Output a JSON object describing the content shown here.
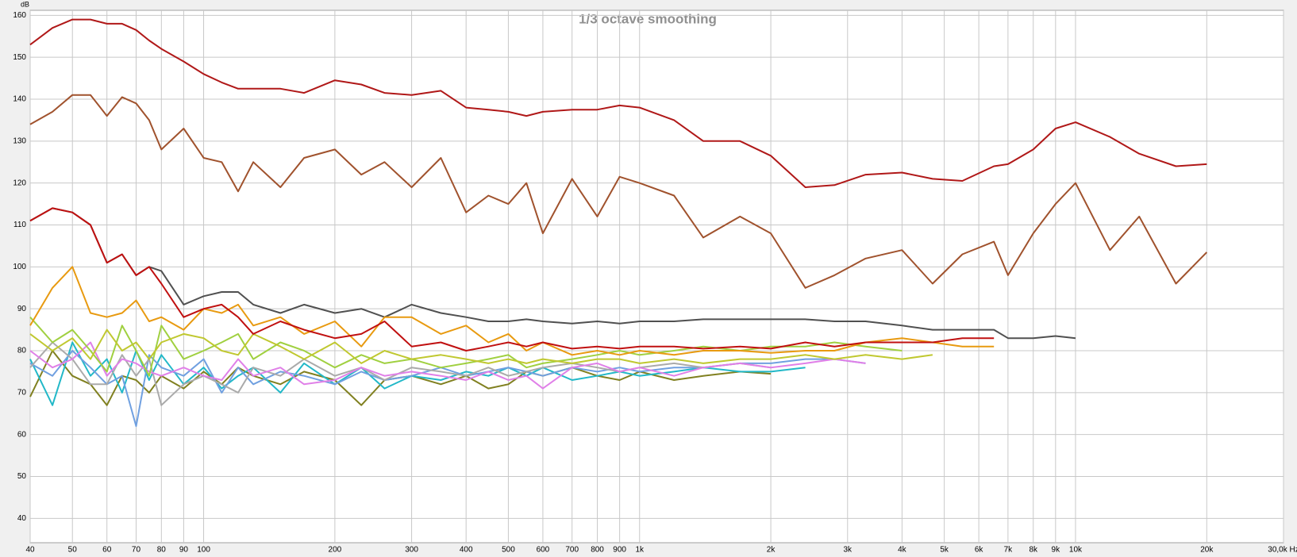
{
  "chart_data": {
    "type": "line",
    "title": "1/3 octave smoothing",
    "y_label": "dB",
    "x_scale": "log",
    "grid": true,
    "x": [
      40,
      45,
      50,
      55,
      60,
      65,
      70,
      75,
      80,
      90,
      100,
      110,
      120,
      130,
      150,
      170,
      200,
      230,
      260,
      300,
      350,
      400,
      450,
      500,
      550,
      600,
      700,
      800,
      900,
      1000,
      1200,
      1400,
      1700,
      2000,
      2400,
      2800,
      3300,
      4000,
      4700,
      5500,
      6500,
      7000,
      8000,
      9000,
      10000,
      12000,
      14000,
      17000,
      20000
    ],
    "xlim": [
      40,
      30000
    ],
    "ylim": [
      34.2,
      161.2
    ],
    "xticks": [
      40,
      50,
      60,
      70,
      80,
      90,
      100,
      200,
      300,
      400,
      500,
      600,
      700,
      800,
      900,
      {
        "value": 1000,
        "label": "1k"
      },
      {
        "value": 2000,
        "label": "2k"
      },
      {
        "value": 3000,
        "label": "3k"
      },
      {
        "value": 4000,
        "label": "4k"
      },
      {
        "value": 5000,
        "label": "5k"
      },
      {
        "value": 6000,
        "label": "6k"
      },
      {
        "value": 7000,
        "label": "7k"
      },
      {
        "value": 8000,
        "label": "8k"
      },
      {
        "value": 9000,
        "label": "9k"
      },
      {
        "value": 10000,
        "label": "10k"
      },
      {
        "value": 20000,
        "label": "20k"
      },
      {
        "value": 30000,
        "label": "30,0k Hz"
      }
    ],
    "yticks": [
      40,
      50,
      60,
      70,
      80,
      90,
      100,
      110,
      120,
      130,
      140,
      150,
      160
    ],
    "series": [
      {
        "color": "#808020",
        "values": [
          69,
          80,
          74,
          72,
          67,
          74,
          73,
          70,
          74,
          71,
          75,
          72,
          76,
          74,
          72,
          75,
          73,
          67,
          73,
          74,
          72,
          74,
          71,
          72,
          75,
          74,
          76,
          74,
          73,
          75,
          73,
          74,
          75,
          74.5,
          null,
          null,
          null,
          null,
          null,
          null,
          null,
          null,
          null,
          null,
          null,
          null,
          null,
          null,
          null
        ]
      },
      {
        "color": "#22b8c8",
        "values": [
          78,
          67,
          82,
          74,
          78,
          70,
          80,
          73,
          79,
          72,
          76,
          71,
          74,
          76,
          70,
          77,
          72,
          76,
          71,
          74,
          73,
          75,
          74,
          76,
          74,
          76,
          73,
          74,
          75,
          74,
          75,
          76,
          75,
          75,
          76,
          null,
          null,
          null,
          null,
          null,
          null,
          null,
          null,
          null,
          null,
          null,
          null,
          null,
          null
        ]
      },
      {
        "color": "#70a0e0",
        "values": [
          77,
          74,
          80,
          76,
          72,
          74,
          62,
          79,
          76,
          74,
          78,
          70,
          76,
          72,
          75,
          74,
          72,
          75,
          73,
          74,
          76,
          74,
          75,
          76,
          75,
          74,
          76,
          75,
          76,
          75,
          76,
          76,
          77,
          77,
          78,
          78,
          77,
          null,
          null,
          null,
          null,
          null,
          null,
          null,
          null,
          null,
          null,
          null,
          null
        ]
      },
      {
        "color": "#aaaaaa",
        "values": [
          76,
          82,
          78,
          72,
          72,
          79,
          74,
          78,
          67,
          72,
          74,
          72,
          70,
          76,
          74,
          78,
          74,
          76,
          73,
          76,
          75,
          74,
          76,
          74,
          75,
          76,
          77,
          76,
          75,
          76,
          77,
          76,
          77,
          76,
          null,
          null,
          null,
          null,
          null,
          null,
          null,
          null,
          null,
          null,
          null,
          null,
          null,
          null,
          null
        ]
      },
      {
        "color": "#e080e8",
        "values": [
          80,
          76,
          78,
          82,
          74,
          78,
          77,
          75,
          74,
          76,
          74,
          73,
          78,
          74,
          76,
          72,
          73,
          76,
          74,
          75,
          74,
          73,
          75,
          73,
          74,
          71,
          76,
          77,
          75,
          76,
          74,
          76,
          77,
          76,
          77,
          78,
          77,
          null,
          null,
          null,
          null,
          null,
          null,
          null,
          null,
          null,
          null,
          null,
          null
        ]
      },
      {
        "color": "#a0d040",
        "values": [
          88,
          82,
          85,
          80,
          75,
          86,
          80,
          74,
          86,
          78,
          80,
          82,
          84,
          78,
          82,
          80,
          76,
          79,
          77,
          78,
          76,
          77,
          78,
          79,
          76,
          77,
          78,
          79,
          80,
          79,
          80,
          81,
          80,
          81,
          81,
          82,
          81,
          80,
          null,
          null,
          null,
          null,
          null,
          null,
          null,
          null,
          null,
          null,
          null
        ]
      },
      {
        "color": "#c0c830",
        "values": [
          84,
          80,
          83,
          78,
          85,
          80,
          82,
          78,
          82,
          84,
          83,
          80,
          79,
          84,
          81,
          78,
          82,
          77,
          80,
          78,
          79,
          78,
          77,
          78,
          77,
          78,
          77,
          78,
          78,
          77,
          78,
          77,
          78,
          78,
          79,
          78,
          79,
          78,
          79,
          null,
          null,
          null,
          null,
          null,
          null,
          null,
          null,
          null,
          null
        ]
      },
      {
        "color": "#505050",
        "values": [
          111,
          114,
          113,
          110,
          101,
          103,
          98,
          100,
          99,
          91,
          93,
          94,
          94,
          91,
          89,
          91,
          89,
          90,
          88,
          91,
          89,
          88,
          87,
          87,
          87.5,
          87,
          86.5,
          87,
          86.5,
          87,
          87,
          87.5,
          87.5,
          87.5,
          87.5,
          87,
          87,
          86,
          85,
          85,
          85,
          83,
          83,
          83.5,
          83,
          null,
          null,
          null,
          null
        ]
      },
      {
        "color": "#e89a10",
        "values": [
          86,
          95,
          100,
          89,
          88,
          89,
          92,
          87,
          88,
          85,
          90,
          89,
          91,
          86,
          88,
          84,
          87,
          81,
          88,
          88,
          84,
          86,
          82,
          84,
          80,
          82,
          79,
          80,
          79,
          80,
          79,
          80,
          80,
          79.5,
          80,
          80,
          82,
          83,
          82,
          81,
          81,
          null,
          null,
          null,
          null,
          null,
          null,
          null,
          null
        ]
      },
      {
        "color": "#c01010",
        "values": [
          111,
          114,
          113,
          110,
          101,
          103,
          98,
          100,
          96,
          88,
          90,
          91,
          88,
          84,
          87,
          85,
          83,
          84,
          87,
          81,
          82,
          80,
          81,
          82,
          81,
          82,
          80.5,
          81,
          80.5,
          81,
          81,
          80.5,
          81,
          80.5,
          82,
          81,
          82,
          82,
          82,
          83,
          83,
          null,
          null,
          null,
          null,
          null,
          null,
          null,
          null
        ]
      },
      {
        "color": "#a0522d",
        "values": [
          134,
          137,
          141,
          141,
          136,
          140.5,
          139,
          135,
          128,
          133,
          126,
          125,
          118,
          125,
          119,
          126,
          128,
          122,
          125,
          119,
          126,
          113,
          117,
          115,
          120,
          108,
          121,
          112,
          121.5,
          120,
          117,
          107,
          112,
          108,
          95,
          98,
          102,
          104,
          96,
          103,
          106,
          98,
          108,
          115,
          120,
          104,
          112,
          96,
          103.5
        ]
      },
      {
        "color": "#b01818",
        "values": [
          153,
          157,
          159,
          159,
          158,
          158,
          156.5,
          154,
          152,
          149,
          146,
          144,
          142.5,
          142.5,
          142.5,
          141.5,
          144.5,
          143.5,
          141.5,
          141,
          142,
          138,
          137.5,
          137,
          136,
          137,
          137.5,
          137.5,
          138.5,
          138,
          135,
          130,
          130,
          126.5,
          119,
          119.5,
          122,
          122.5,
          121,
          120.5,
          124,
          124.5,
          128,
          133,
          134.5,
          131,
          127,
          124,
          124.5
        ]
      }
    ]
  }
}
